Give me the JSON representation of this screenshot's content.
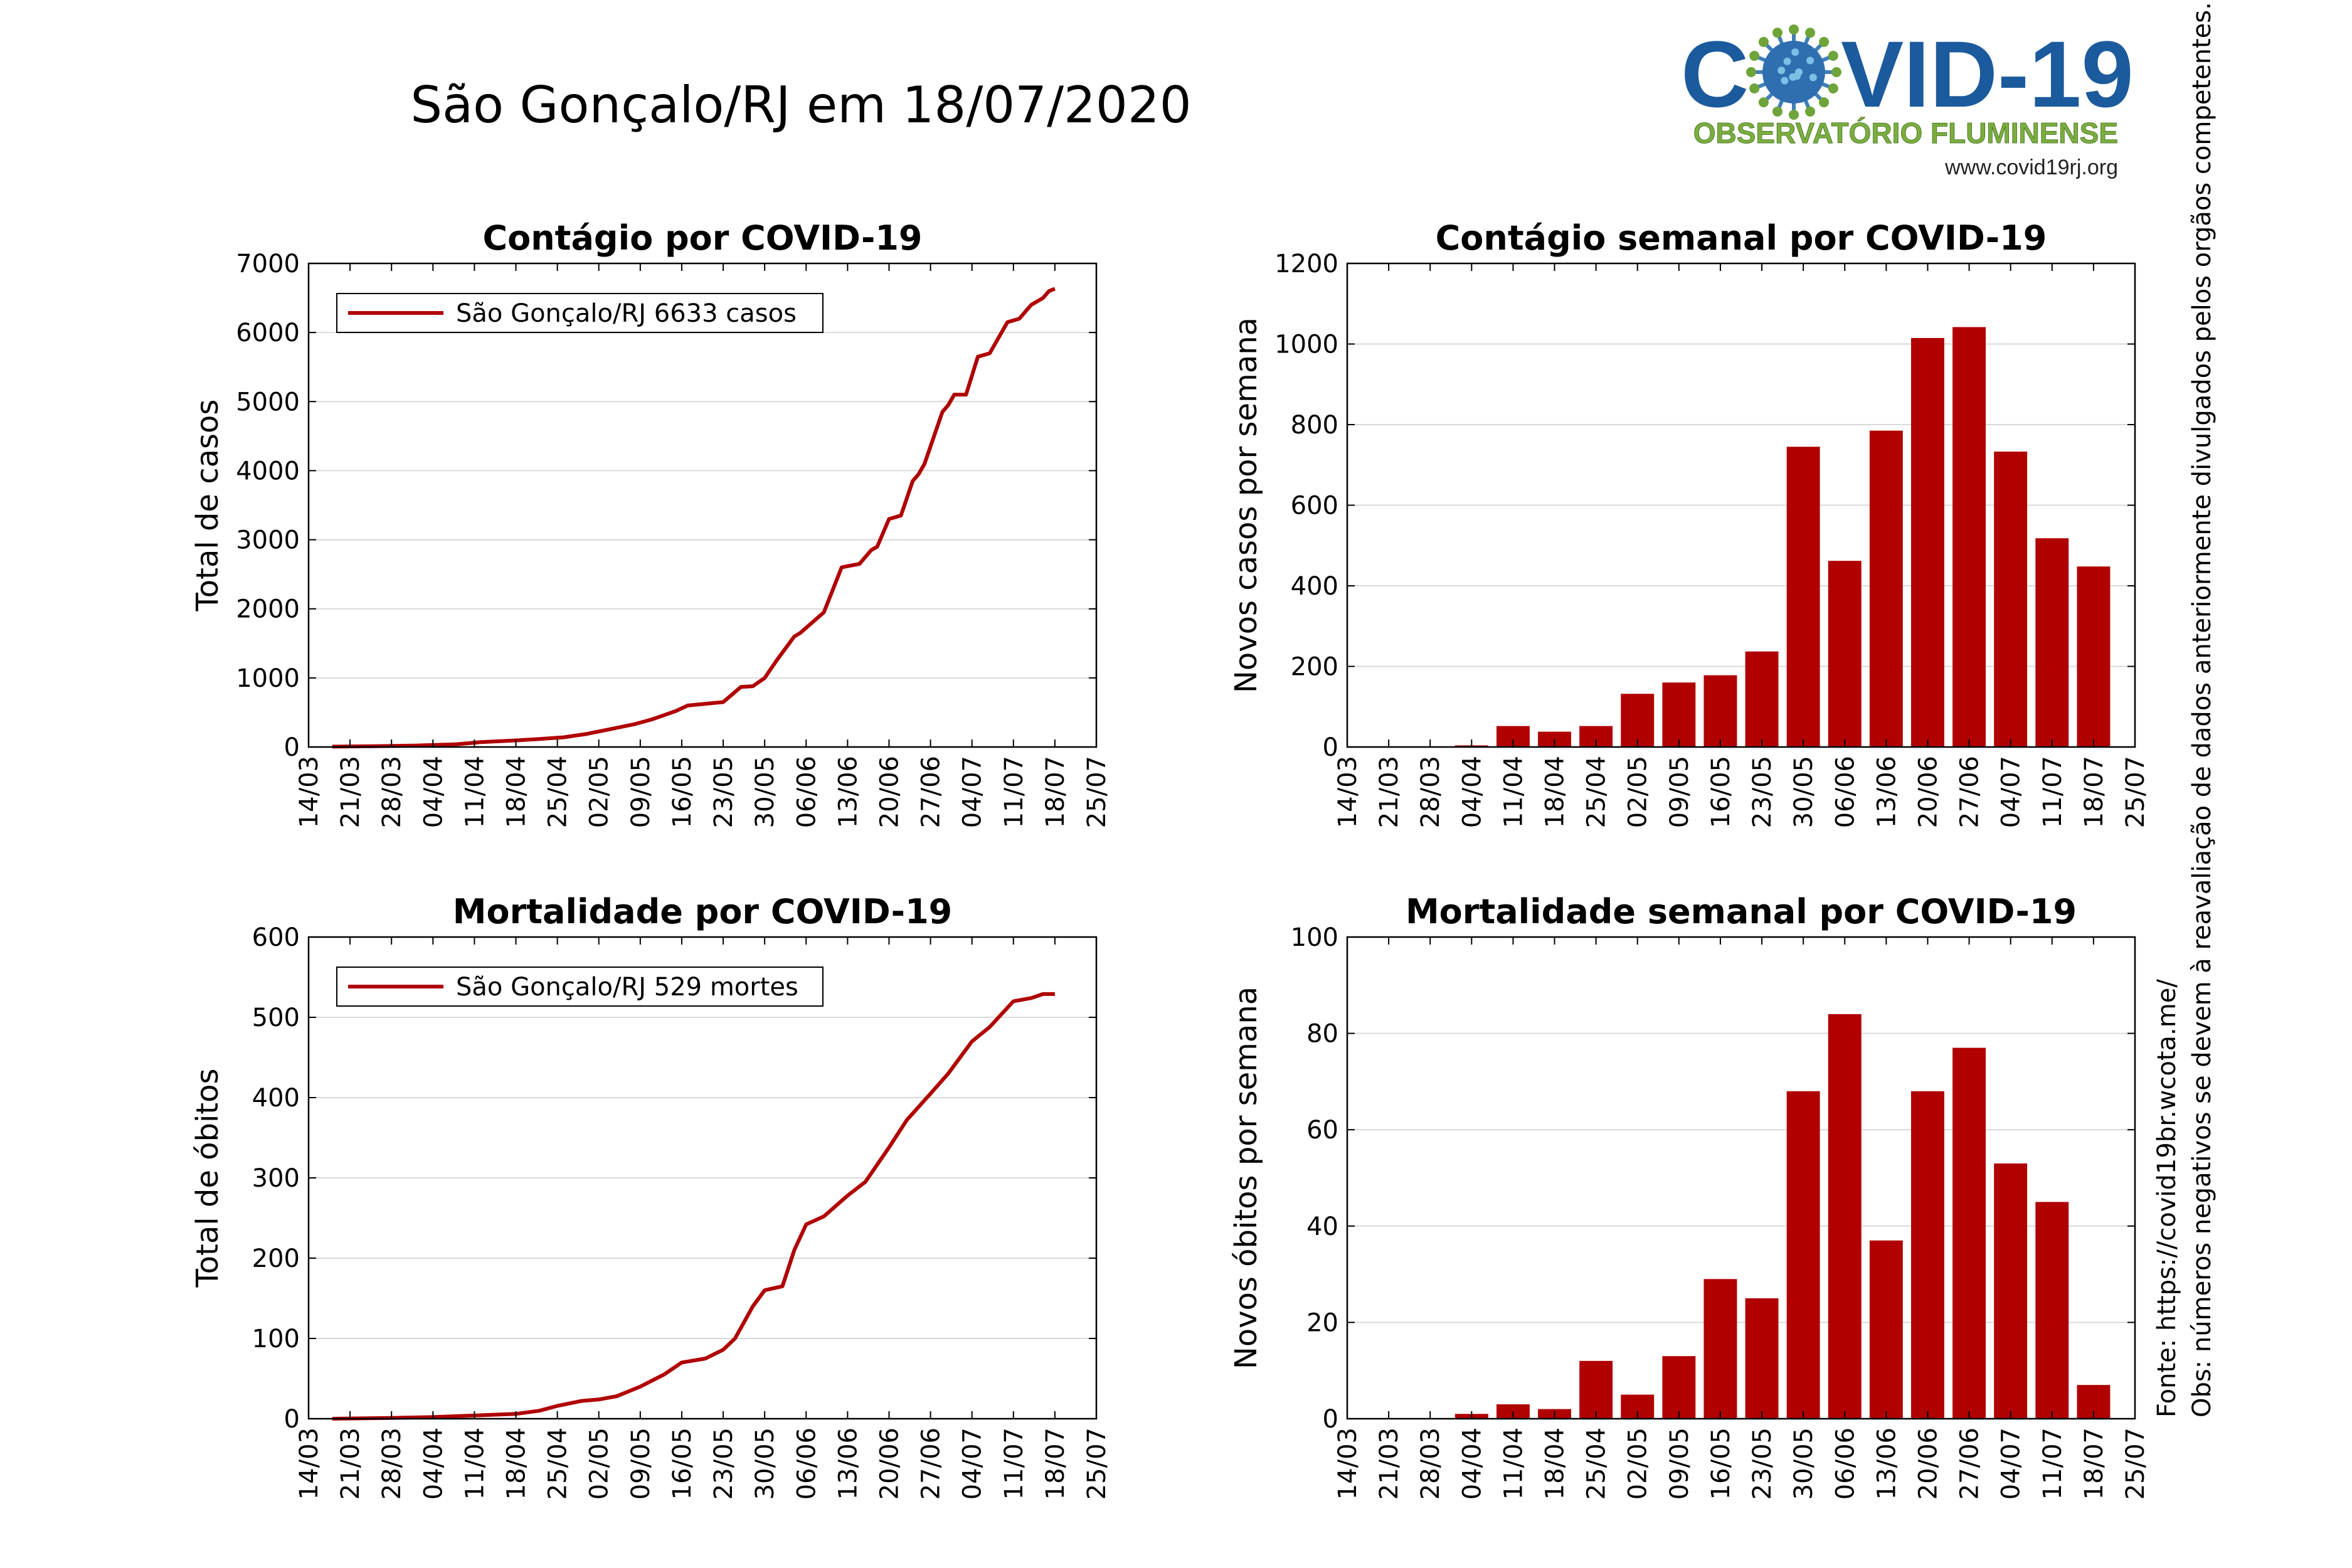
{
  "page": {
    "title": "São Gonçalo/RJ em 18/07/2020",
    "logo": {
      "left": "C",
      "right": "VID-19",
      "subtitle": "OBSERVATÓRIO FLUMINENSE",
      "url": "www.covid19rj.org",
      "icon": "virus-icon",
      "colors": {
        "blue": "#1b5a9c",
        "green": "#6ea43a",
        "subtitle": "#7cae3f"
      }
    },
    "side_notes": {
      "source": "Fonte: https://covid19br.wcota.me/",
      "obs": "Obs: números negativos se devem à reavaliação de dados anteriormente divulgados pelos orgãos competentes."
    },
    "colors": {
      "series": "#b00000",
      "grid": "#d9d9d9"
    }
  },
  "chart_data": [
    {
      "id": "cumulative-cases",
      "type": "line",
      "title": "Contágio por COVID-19",
      "xlabel": "",
      "ylabel": "Total de casos",
      "ylim": [
        0,
        7000
      ],
      "yticks": [
        0,
        1000,
        2000,
        3000,
        4000,
        5000,
        6000,
        7000
      ],
      "xlim": [
        "2020-03-14",
        "2020-07-25"
      ],
      "xticks": [
        "14/03",
        "21/03",
        "28/03",
        "04/04",
        "11/04",
        "18/04",
        "25/04",
        "02/05",
        "09/05",
        "16/05",
        "23/05",
        "30/05",
        "06/06",
        "13/06",
        "20/06",
        "27/06",
        "04/07",
        "11/07",
        "18/07",
        "25/07"
      ],
      "legend": {
        "label": "São Gonçalo/RJ  6633 casos",
        "position": "top-left"
      },
      "grid": "horizontal",
      "series": [
        {
          "x": [
            "2020-03-18",
            "2020-03-25",
            "2020-04-01",
            "2020-04-08",
            "2020-04-12",
            "2020-04-18",
            "2020-04-22",
            "2020-04-26",
            "2020-04-30",
            "2020-05-04",
            "2020-05-08",
            "2020-05-11",
            "2020-05-15",
            "2020-05-17",
            "2020-05-23",
            "2020-05-26",
            "2020-05-28",
            "2020-05-30",
            "2020-06-01",
            "2020-06-04",
            "2020-06-05",
            "2020-06-07",
            "2020-06-09",
            "2020-06-12",
            "2020-06-15",
            "2020-06-17",
            "2020-06-18",
            "2020-06-20",
            "2020-06-22",
            "2020-06-24",
            "2020-06-25",
            "2020-06-26",
            "2020-06-29",
            "2020-06-30",
            "2020-07-01",
            "2020-07-03",
            "2020-07-05",
            "2020-07-07",
            "2020-07-10",
            "2020-07-12",
            "2020-07-14",
            "2020-07-16",
            "2020-07-17",
            "2020-07-18"
          ],
          "y": [
            5,
            12,
            20,
            40,
            70,
            95,
            115,
            140,
            190,
            260,
            330,
            400,
            520,
            600,
            650,
            870,
            880,
            1000,
            1250,
            1600,
            1650,
            1800,
            1950,
            2600,
            2650,
            2850,
            2900,
            3300,
            3350,
            3850,
            3950,
            4100,
            4850,
            4950,
            5100,
            5100,
            5650,
            5700,
            6150,
            6200,
            6400,
            6500,
            6600,
            6633
          ]
        }
      ]
    },
    {
      "id": "weekly-cases",
      "type": "bar",
      "title": "Contágio semanal por COVID-19",
      "xlabel": "",
      "ylabel": "Novos casos por semana",
      "ylim": [
        0,
        1200
      ],
      "yticks": [
        0,
        200,
        400,
        600,
        800,
        1000,
        1200
      ],
      "xticks": [
        "14/03",
        "21/03",
        "28/03",
        "04/04",
        "11/04",
        "18/04",
        "25/04",
        "02/05",
        "09/05",
        "16/05",
        "23/05",
        "30/05",
        "06/06",
        "13/06",
        "20/06",
        "27/06",
        "04/07",
        "11/07",
        "18/07",
        "25/07"
      ],
      "grid": "horizontal",
      "categories": [
        "21/03",
        "28/03",
        "04/04",
        "11/04",
        "18/04",
        "25/04",
        "02/05",
        "09/05",
        "16/05",
        "23/05",
        "30/05",
        "06/06",
        "13/06",
        "20/06",
        "27/06",
        "04/07",
        "11/07",
        "18/07"
      ],
      "values": [
        0,
        0,
        4,
        52,
        38,
        52,
        132,
        160,
        178,
        237,
        745,
        462,
        785,
        1015,
        1042,
        733,
        518,
        448
      ]
    },
    {
      "id": "cumulative-deaths",
      "type": "line",
      "title": "Mortalidade por COVID-19",
      "xlabel": "",
      "ylabel": "Total de óbitos",
      "ylim": [
        0,
        600
      ],
      "yticks": [
        0,
        100,
        200,
        300,
        400,
        500,
        600
      ],
      "xlim": [
        "2020-03-14",
        "2020-07-25"
      ],
      "xticks": [
        "14/03",
        "21/03",
        "28/03",
        "04/04",
        "11/04",
        "18/04",
        "25/04",
        "02/05",
        "09/05",
        "16/05",
        "23/05",
        "30/05",
        "06/06",
        "13/06",
        "20/06",
        "27/06",
        "04/07",
        "11/07",
        "18/07",
        "25/07"
      ],
      "legend": {
        "label": "São Gonçalo/RJ  529 mortes",
        "position": "top-left"
      },
      "grid": "horizontal",
      "series": [
        {
          "x": [
            "2020-03-18",
            "2020-03-28",
            "2020-04-04",
            "2020-04-11",
            "2020-04-18",
            "2020-04-22",
            "2020-04-25",
            "2020-04-29",
            "2020-05-02",
            "2020-05-05",
            "2020-05-09",
            "2020-05-13",
            "2020-05-16",
            "2020-05-20",
            "2020-05-23",
            "2020-05-25",
            "2020-05-28",
            "2020-05-30",
            "2020-06-02",
            "2020-06-04",
            "2020-06-06",
            "2020-06-09",
            "2020-06-13",
            "2020-06-16",
            "2020-06-20",
            "2020-06-23",
            "2020-06-27",
            "2020-06-30",
            "2020-07-04",
            "2020-07-07",
            "2020-07-11",
            "2020-07-14",
            "2020-07-16",
            "2020-07-18"
          ],
          "y": [
            0,
            1,
            2,
            4,
            6,
            10,
            16,
            22,
            24,
            28,
            40,
            55,
            70,
            75,
            86,
            100,
            140,
            160,
            165,
            210,
            242,
            252,
            278,
            295,
            338,
            372,
            405,
            430,
            470,
            488,
            520,
            524,
            529,
            529
          ]
        }
      ]
    },
    {
      "id": "weekly-deaths",
      "type": "bar",
      "title": "Mortalidade semanal por COVID-19",
      "xlabel": "",
      "ylabel": "Novos óbitos por semana",
      "ylim": [
        0,
        100
      ],
      "yticks": [
        0,
        20,
        40,
        60,
        80,
        100
      ],
      "xticks": [
        "14/03",
        "21/03",
        "28/03",
        "04/04",
        "11/04",
        "18/04",
        "25/04",
        "02/05",
        "09/05",
        "16/05",
        "23/05",
        "30/05",
        "06/06",
        "13/06",
        "20/06",
        "27/06",
        "04/07",
        "11/07",
        "18/07",
        "25/07"
      ],
      "grid": "horizontal",
      "categories": [
        "21/03",
        "28/03",
        "04/04",
        "11/04",
        "18/04",
        "25/04",
        "02/05",
        "09/05",
        "16/05",
        "23/05",
        "30/05",
        "06/06",
        "13/06",
        "20/06",
        "27/06",
        "04/07",
        "11/07",
        "18/07"
      ],
      "values": [
        0,
        0,
        1,
        3,
        2,
        12,
        5,
        13,
        29,
        25,
        68,
        84,
        37,
        68,
        77,
        53,
        45,
        7
      ]
    }
  ]
}
